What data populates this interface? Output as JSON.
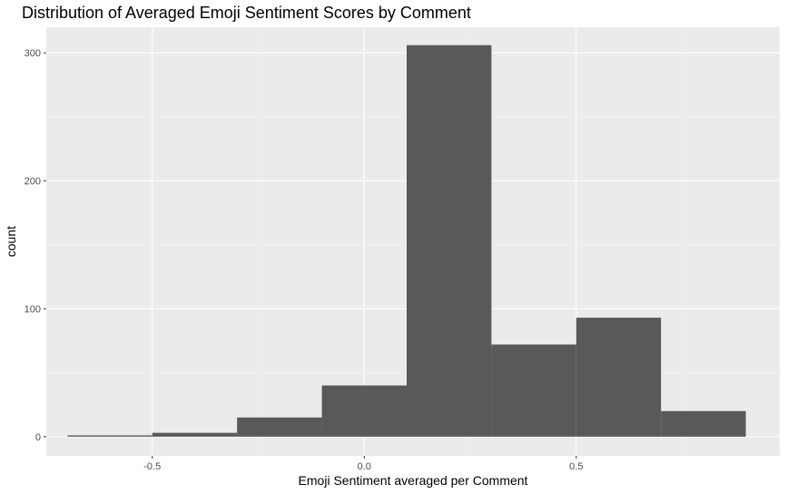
{
  "chart_data": {
    "type": "bar",
    "subtype": "histogram",
    "title": "Distribution of Averaged Emoji Sentiment Scores by Comment",
    "xlabel": "Emoji Sentiment averaged per Comment",
    "ylabel": "count",
    "xlim": [
      -0.75,
      0.98
    ],
    "ylim": [
      -15,
      320
    ],
    "x_ticks": [
      -0.5,
      0.0,
      0.5
    ],
    "x_tick_labels": [
      "-0.5",
      "0.0",
      "0.5"
    ],
    "y_ticks": [
      0,
      100,
      200,
      300
    ],
    "y_tick_labels": [
      "0",
      "100",
      "200",
      "300"
    ],
    "bins": [
      {
        "x0": -0.7,
        "x1": -0.5,
        "count": 1
      },
      {
        "x0": -0.5,
        "x1": -0.3,
        "count": 3
      },
      {
        "x0": -0.3,
        "x1": -0.1,
        "count": 15
      },
      {
        "x0": -0.1,
        "x1": 0.1,
        "count": 40
      },
      {
        "x0": 0.1,
        "x1": 0.3,
        "count": 306
      },
      {
        "x0": 0.3,
        "x1": 0.5,
        "count": 72
      },
      {
        "x0": 0.5,
        "x1": 0.7,
        "count": 93
      },
      {
        "x0": 0.7,
        "x1": 0.9,
        "count": 20
      }
    ],
    "grid": true,
    "colors": {
      "panel_background": "#ebebeb",
      "grid_major": "#ffffff",
      "grid_minor": "#f5f5f5",
      "bar_fill": "#595959",
      "tick_mark": "#333333"
    }
  }
}
